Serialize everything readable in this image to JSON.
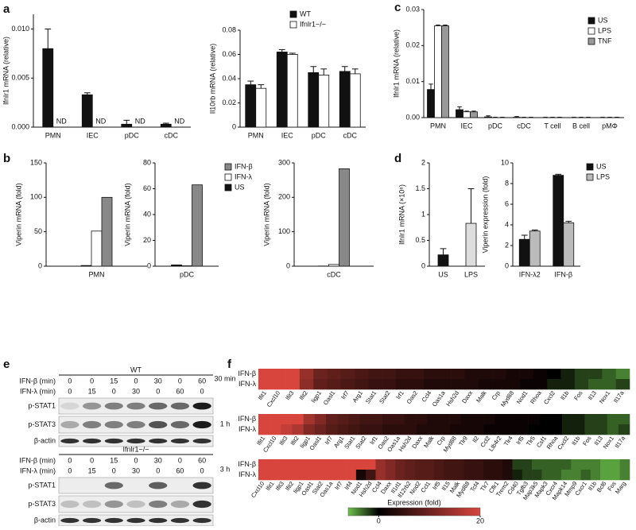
{
  "panel_labels": [
    "a",
    "b",
    "c",
    "d",
    "e",
    "f"
  ],
  "chart_data": [
    {
      "type": "bar",
      "ylabel": "Ifnlr1 mRNA (relative)",
      "categories": [
        "PMN",
        "IEC",
        "pDC",
        "cDC"
      ],
      "series": [
        {
          "color": "#111111",
          "values": [
            0.008,
            0.0033,
            0.0003,
            0.0003
          ],
          "errors": [
            0.002,
            0.0002,
            0.0004,
            0.0001
          ]
        }
      ],
      "annotations": [
        "ND",
        "ND",
        "ND",
        "ND"
      ],
      "ylim": [
        0,
        0.0115
      ],
      "yticks": [
        {
          "value": 0,
          "label": "0.000"
        },
        {
          "value": 0.005,
          "label": "0.005"
        },
        {
          "value": 0.01,
          "label": "0.010"
        }
      ]
    },
    {
      "type": "bar",
      "ylabel": "Il10rb mRNA (relative)",
      "categories": [
        "PMN",
        "IEC",
        "pDC",
        "cDC"
      ],
      "series": [
        {
          "name": "WT",
          "color": "#111111",
          "values": [
            0.035,
            0.062,
            0.045,
            0.046
          ],
          "errors": [
            0.003,
            0.002,
            0.005,
            0.004
          ]
        },
        {
          "name": "Ifnlr1−/−",
          "color": "#ffffff",
          "values": [
            0.032,
            0.06,
            0.043,
            0.044
          ],
          "errors": [
            0.003,
            0.001,
            0.005,
            0.004
          ]
        }
      ],
      "legend": "top right",
      "ylim": [
        0,
        0.08
      ],
      "yticks": [
        0,
        0.02,
        0.04,
        0.06,
        0.08
      ]
    },
    {
      "type": "bar",
      "ylabel": "Ifnlr1 mRNA (relative)",
      "categories": [
        "PMN",
        "IEC",
        "pDC",
        "cDC",
        "T cell",
        "B cell",
        "pMΦ"
      ],
      "series": [
        {
          "name": "US",
          "color": "#111111",
          "values": [
            0.0078,
            0.0022,
            0.0002,
            0.0001,
            0,
            0,
            0
          ],
          "errors": [
            0.0015,
            0.0008,
            0.0003,
            0.0002,
            0.0001,
            0.0001,
            0.0001
          ]
        },
        {
          "name": "LPS",
          "color": "#ffffff",
          "values": [
            0.0255,
            0.0016,
            0,
            0,
            0,
            0,
            0
          ],
          "errors": [
            0.0002,
            0.0002,
            0.0001,
            0.0001,
            0.0001,
            0.0001,
            0.0001
          ]
        },
        {
          "name": "TNF",
          "color": "#999999",
          "values": [
            0.0255,
            0.0016,
            0,
            0,
            0,
            0,
            0
          ],
          "errors": [
            0.0002,
            0.0002,
            0.0001,
            0.0001,
            0.0001,
            0.0001,
            0.0001
          ]
        }
      ],
      "legend": "upper right",
      "ylim": [
        0,
        0.03
      ],
      "yticks": [
        {
          "value": 0,
          "label": "0.00"
        },
        0.01,
        0.02,
        0.03
      ]
    },
    {
      "type": "bar",
      "ylabel": "Viperin mRNA (fold)",
      "categories": [
        "PMN"
      ],
      "series": [
        {
          "color": "#111111",
          "values": [
            1
          ]
        },
        {
          "color": "#ffffff",
          "values": [
            51
          ]
        },
        {
          "color": "#888888",
          "values": [
            100
          ]
        }
      ],
      "ylim": [
        0,
        150
      ],
      "yticks": [
        0,
        50,
        100,
        150
      ]
    },
    {
      "type": "bar",
      "ylabel": "Viperin mRNA (fold)",
      "categories": [
        "pDC"
      ],
      "series": [
        {
          "name": "US",
          "color": "#111111",
          "values": [
            1
          ]
        },
        {
          "name": "IFN-λ",
          "color": "#ffffff",
          "values": [
            0.3
          ]
        },
        {
          "name": "IFN-β",
          "color": "#888888",
          "values": [
            63
          ]
        }
      ],
      "legend": "right",
      "legend_reversed": true,
      "ylim": [
        0,
        80
      ],
      "yticks": [
        0,
        20,
        40,
        60,
        80
      ]
    },
    {
      "type": "bar",
      "ylabel": "Viperin mRNA (fold)",
      "categories": [
        "cDC"
      ],
      "series": [
        {
          "color": "#111111",
          "values": [
            0.5
          ]
        },
        {
          "color": "#ffffff",
          "values": [
            5
          ]
        },
        {
          "color": "#888888",
          "values": [
            283
          ]
        }
      ],
      "ylim": [
        0,
        300
      ],
      "yticks": [
        0,
        100,
        200,
        300
      ]
    },
    {
      "type": "bar",
      "ylabel": "Ifnlr1 mRNA (×10⁶)",
      "categories": [
        "US",
        "LPS"
      ],
      "series": [
        {
          "colors": [
            "#111111",
            "#dddddd"
          ],
          "values": [
            0.22,
            0.83
          ],
          "errors": [
            0.12,
            0.67
          ]
        }
      ],
      "ylim": [
        0,
        2
      ],
      "yticks": [
        0,
        0.5,
        1,
        1.5,
        2
      ]
    },
    {
      "type": "bar",
      "ylabel": "Viperin expression (fold)",
      "categories": [
        "IFN-λ2",
        "IFN-β"
      ],
      "series": [
        {
          "name": "US",
          "color": "#111111",
          "values": [
            2.6,
            8.8
          ],
          "errors": [
            0.4,
            0.1
          ]
        },
        {
          "name": "LPS",
          "color": "#bbbbbb",
          "values": [
            3.4,
            4.2
          ],
          "errors": [
            0.1,
            0.15
          ]
        }
      ],
      "legend": "right",
      "ylim": [
        0,
        10
      ],
      "yticks": [
        0,
        2,
        4,
        6,
        8,
        10
      ]
    },
    {
      "type": "heatmap",
      "row_label": "30 min",
      "rows": [
        "IFN-β",
        "IFN-λ"
      ],
      "columns": [
        "Ifit1",
        "Cxcl10",
        "Ifit3",
        "Ifit2",
        "Iigp1",
        "Oasl1",
        "Irf7",
        "Arg1",
        "Stat1",
        "Stat2",
        "Irf1",
        "Oas2",
        "Ccl4",
        "Oas1a",
        "Hsh2d",
        "Daxx",
        "Malk",
        "Crp",
        "Myd88",
        "Nod1",
        "Rhoa",
        "Cxcl2",
        "Il1b",
        "Fos",
        "Il13",
        "Nox1",
        "Il17a"
      ],
      "values": [
        [
          20,
          20,
          20,
          14,
          10,
          9,
          8,
          7,
          6,
          6,
          5,
          5,
          4,
          4,
          4,
          3,
          3,
          3,
          2,
          2,
          1,
          0,
          -1,
          -2,
          -2,
          -3,
          -4
        ],
        [
          20,
          20,
          20,
          13,
          9,
          8,
          7,
          6,
          5,
          5,
          4,
          4,
          3,
          3,
          3,
          3,
          2,
          2,
          2,
          1,
          1,
          -1,
          -1,
          -2,
          -3,
          -3,
          -2
        ]
      ],
      "clim": [
        -6,
        0,
        20
      ],
      "colormap": [
        "#6cc24a",
        "#000000",
        "#d8453d"
      ]
    },
    {
      "type": "heatmap",
      "row_label": "1 h",
      "rows": [
        "IFN-β",
        "IFN-λ"
      ],
      "columns": [
        "Ifit1",
        "Cxcl10",
        "Ifit3",
        "Ifit2",
        "Iigp1",
        "Oasl1",
        "Irf7",
        "Arg1",
        "Stat1",
        "Stat2",
        "Irf1",
        "Oas2",
        "Oas1a",
        "Hsh2d",
        "Daxx",
        "Malk",
        "Crp",
        "Myd88",
        "Tlr9",
        "Il2",
        "Ccl2",
        "Ltb4r2",
        "Tlr4",
        "Irf5",
        "Tlr5",
        "Csf1",
        "Rhoa",
        "Cxcl2",
        "Il1b",
        "Fos",
        "Il13",
        "Nox1",
        "Il17a"
      ],
      "values": [
        [
          20,
          20,
          20,
          20,
          15,
          12,
          9,
          8,
          7,
          6,
          6,
          5,
          5,
          4,
          4,
          3,
          3,
          3,
          2,
          2,
          2,
          1,
          1,
          1,
          1,
          0,
          0,
          -1,
          -1,
          -2,
          -2,
          -3,
          -3
        ],
        [
          20,
          20,
          18,
          16,
          12,
          10,
          8,
          7,
          6,
          5,
          5,
          4,
          4,
          4,
          3,
          3,
          3,
          2,
          2,
          2,
          1,
          1,
          1,
          1,
          0,
          0,
          0,
          -1,
          -1,
          -2,
          -2,
          -3,
          -2
        ]
      ],
      "clim": [
        -6,
        0,
        20
      ],
      "colormap": [
        "#6cc24a",
        "#000000",
        "#d8453d"
      ]
    },
    {
      "type": "heatmap",
      "row_label": "3 h",
      "rows": [
        "IFN-β",
        "IFN-λ"
      ],
      "columns": [
        "Cxcl10",
        "Ifit1",
        "Ifit3",
        "Ifit2",
        "Iigp1",
        "Oasl1",
        "Stat2",
        "Oas1a",
        "Irf7",
        "Irf4",
        "Nod1",
        "Hsh2d",
        "Ccl4",
        "Daxx",
        "Il1rl1",
        "Il12rb2",
        "Nod2",
        "Ccl1",
        "Irf5",
        "Il15",
        "Malk",
        "Myd88",
        "Tcf4",
        "Tlr7",
        "Cflr1",
        "Trem2",
        "Cd40",
        "Tgfb3",
        "Map3k5",
        "Mapk3",
        "Cxcr4",
        "Mapk14",
        "Mmp9",
        "Cxcr1",
        "Il1b",
        "Bcl6",
        "Fos",
        "Marg"
      ],
      "values": [
        [
          20,
          20,
          20,
          20,
          20,
          20,
          20,
          20,
          20,
          20,
          20,
          20,
          14,
          12,
          10,
          9,
          8,
          8,
          7,
          6,
          6,
          5,
          5,
          4,
          4,
          3,
          -2,
          -2,
          -3,
          -3,
          -3,
          -3,
          -4,
          -4,
          -4,
          -5,
          -5,
          -4
        ],
        [
          20,
          20,
          20,
          20,
          20,
          20,
          20,
          20,
          20,
          20,
          2,
          6,
          14,
          12,
          10,
          9,
          8,
          8,
          7,
          6,
          6,
          5,
          5,
          4,
          4,
          3,
          -1,
          -2,
          -2,
          -3,
          -3,
          -4,
          -4,
          -3,
          -4,
          -5,
          -5,
          -4
        ]
      ],
      "clim": [
        -6,
        0,
        20
      ],
      "colormap": [
        "#6cc24a",
        "#000000",
        "#d8453d"
      ],
      "colorbar": {
        "label": "Expression (fold)",
        "ticks": [
          0,
          20
        ]
      }
    }
  ],
  "blots": [
    {
      "genotype": "WT",
      "conditions": [
        {
          "label": "IFN-β (min)",
          "values": [
            0,
            0,
            15,
            0,
            30,
            0,
            60
          ]
        },
        {
          "label": "IFN-λ (min)",
          "values": [
            0,
            15,
            0,
            30,
            0,
            60,
            0
          ]
        }
      ],
      "bands": [
        "p-STAT1",
        "p-STAT3",
        "β-actin"
      ]
    },
    {
      "genotype": "Ifnlr1−/−",
      "conditions": [
        {
          "label": "IFN-β (min)",
          "values": [
            0,
            0,
            15,
            0,
            30,
            0,
            60
          ]
        },
        {
          "label": "IFN-λ (min)",
          "values": [
            0,
            15,
            0,
            30,
            0,
            60,
            0
          ]
        }
      ],
      "bands": [
        "p-STAT1",
        "p-STAT3",
        "β-actin"
      ]
    }
  ]
}
